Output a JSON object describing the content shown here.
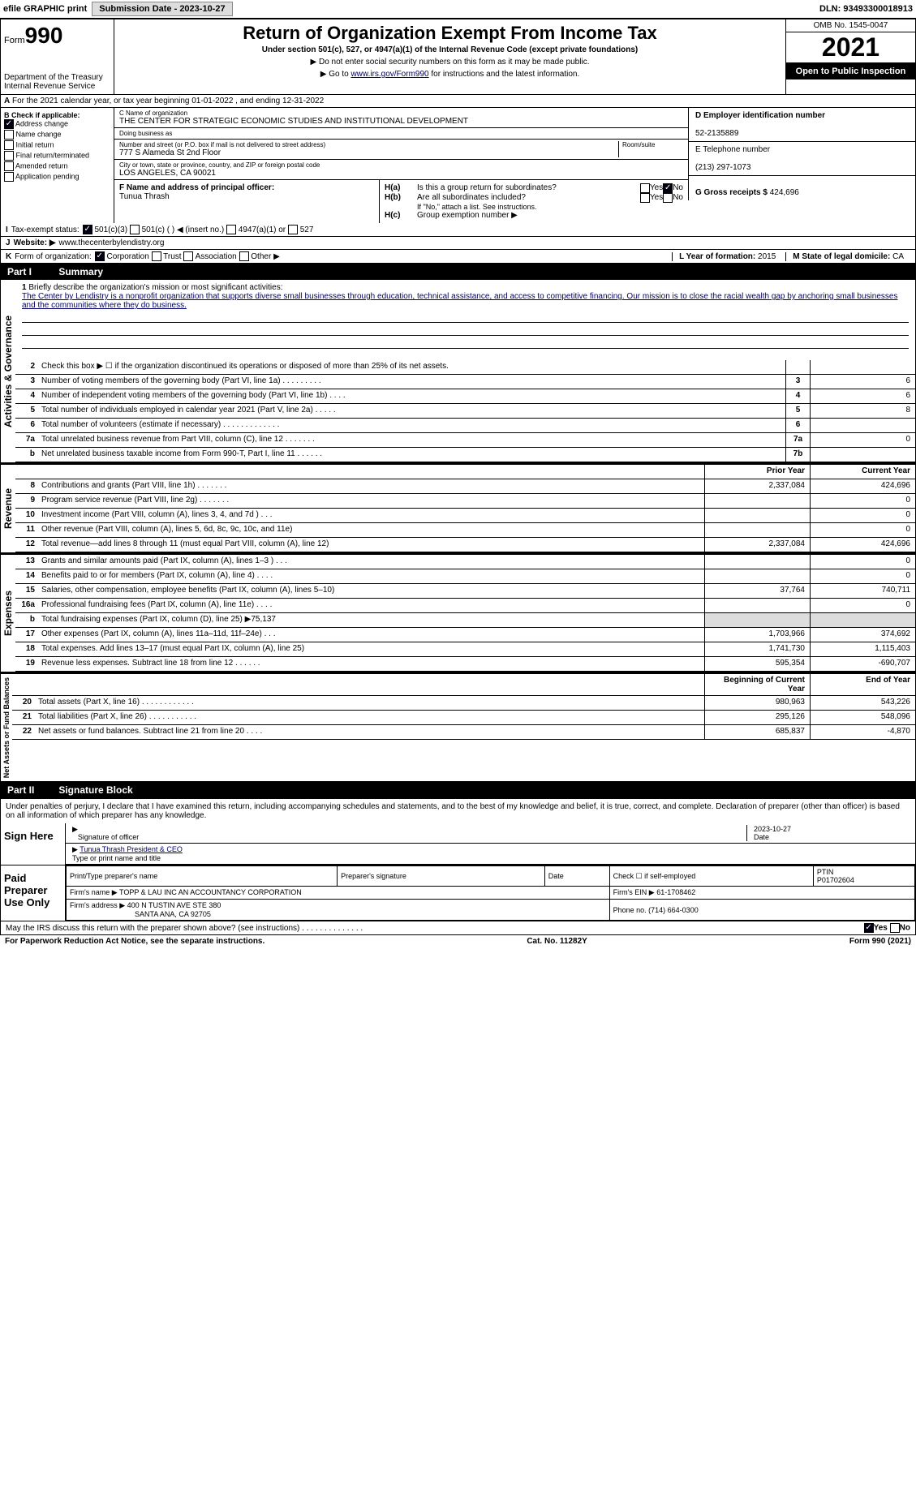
{
  "top_bar": {
    "efile": "efile GRAPHIC print",
    "submission": "Submission Date - 2023-10-27",
    "dln": "DLN: 93493300018913"
  },
  "header": {
    "form_label": "Form",
    "form_num": "990",
    "title": "Return of Organization Exempt From Income Tax",
    "subtitle": "Under section 501(c), 527, or 4947(a)(1) of the Internal Revenue Code (except private foundations)",
    "note1": "▶ Do not enter social security numbers on this form as it may be made public.",
    "note2_pre": "▶ Go to ",
    "note2_link": "www.irs.gov/Form990",
    "note2_post": " for instructions and the latest information.",
    "dept": "Department of the Treasury",
    "irs": "Internal Revenue Service",
    "omb": "OMB No. 1545-0047",
    "year": "2021",
    "open": "Open to Public Inspection"
  },
  "row_a": {
    "text": "For the 2021 calendar year, or tax year beginning 01-01-2022   , and ending 12-31-2022",
    "marker": "A"
  },
  "col_b": {
    "hdr": "B Check if applicable:",
    "items": [
      "Address change",
      "Name change",
      "Initial return",
      "Final return/terminated",
      "Amended return",
      "Application pending"
    ],
    "checked": [
      true,
      false,
      false,
      false,
      false,
      false
    ]
  },
  "org": {
    "name_lbl": "C Name of organization",
    "name": "THE CENTER FOR STRATEGIC ECONOMIC STUDIES AND INSTITUTIONAL DEVELOPMENT",
    "dba_lbl": "Doing business as",
    "dba": "",
    "addr_lbl": "Number and street (or P.O. box if mail is not delivered to street address)",
    "room_lbl": "Room/suite",
    "addr": "777 S Alameda St 2nd Floor",
    "city_lbl": "City or town, state or province, country, and ZIP or foreign postal code",
    "city": "LOS ANGELES, CA  90021",
    "officer_lbl": "F Name and address of principal officer:",
    "officer": "Tunua Thrash"
  },
  "right": {
    "ein_lbl": "D Employer identification number",
    "ein": "52-2135889",
    "tel_lbl": "E Telephone number",
    "tel": "(213) 297-1073",
    "gross_lbl": "G Gross receipts $",
    "gross": "424,696"
  },
  "h_section": {
    "ha": "Is this a group return for subordinates?",
    "hb": "Are all subordinates included?",
    "hb_note": "If \"No,\" attach a list. See instructions.",
    "hc": "Group exemption number ▶",
    "ha_lbl": "H(a)",
    "hb_lbl": "H(b)",
    "hc_lbl": "H(c)",
    "yes": "Yes",
    "no": "No"
  },
  "tax_status": {
    "lbl": "Tax-exempt status:",
    "i": "I",
    "opts": [
      "501(c)(3)",
      "501(c) (  ) ◀ (insert no.)",
      "4947(a)(1) or",
      "527"
    ],
    "checked": 0
  },
  "website": {
    "lbl": "Website: ▶",
    "j": "J",
    "val": "www.thecenterbylendistry.org"
  },
  "k_line": {
    "lbl": "Form of organization:",
    "k": "K",
    "opts": [
      "Corporation",
      "Trust",
      "Association",
      "Other ▶"
    ],
    "checked": 0,
    "l_lbl": "L Year of formation:",
    "l_val": "2015",
    "m_lbl": "M State of legal domicile:",
    "m_val": "CA"
  },
  "parts": {
    "p1": "Part I",
    "p1_t": "Summary",
    "p2": "Part II",
    "p2_t": "Signature Block"
  },
  "sections": {
    "activities": "Activities & Governance",
    "revenue": "Revenue",
    "expenses": "Expenses",
    "net": "Net Assets or Fund Balances"
  },
  "mission": {
    "lbl": "Briefly describe the organization's mission or most significant activities:",
    "n": "1",
    "text": "The Center by Lendistry is a nonprofit organization that supports diverse small businesses through education, technical assistance, and access to competitive financing. Our mission is to close the racial wealth gap by anchoring small businesses and the communities where they do business."
  },
  "gov_lines": [
    {
      "n": "2",
      "txt": "Check this box ▶ ☐ if the organization discontinued its operations or disposed of more than 25% of its net assets.",
      "box": "",
      "v": ""
    },
    {
      "n": "3",
      "txt": "Number of voting members of the governing body (Part VI, line 1a)  .  .  .  .  .  .  .  .  .",
      "box": "3",
      "v": "6"
    },
    {
      "n": "4",
      "txt": "Number of independent voting members of the governing body (Part VI, line 1b)  .  .  .  .",
      "box": "4",
      "v": "6"
    },
    {
      "n": "5",
      "txt": "Total number of individuals employed in calendar year 2021 (Part V, line 2a)  .  .  .  .  .",
      "box": "5",
      "v": "8"
    },
    {
      "n": "6",
      "txt": "Total number of volunteers (estimate if necessary)  .  .  .  .  .  .  .  .  .  .  .  .  .",
      "box": "6",
      "v": ""
    },
    {
      "n": "7a",
      "txt": "Total unrelated business revenue from Part VIII, column (C), line 12  .  .  .  .  .  .  .",
      "box": "7a",
      "v": "0"
    },
    {
      "n": "b",
      "txt": "Net unrelated business taxable income from Form 990-T, Part I, line 11  .  .  .  .  .  .",
      "box": "7b",
      "v": ""
    }
  ],
  "col_headers": {
    "prior": "Prior Year",
    "current": "Current Year",
    "begin": "Beginning of Current Year",
    "end": "End of Year"
  },
  "revenue_lines": [
    {
      "n": "8",
      "txt": "Contributions and grants (Part VIII, line 1h)  .  .  .  .  .  .  .",
      "p": "2,337,084",
      "c": "424,696"
    },
    {
      "n": "9",
      "txt": "Program service revenue (Part VIII, line 2g)  .  .  .  .  .  .  .",
      "p": "",
      "c": "0"
    },
    {
      "n": "10",
      "txt": "Investment income (Part VIII, column (A), lines 3, 4, and 7d )  .  .  .",
      "p": "",
      "c": "0"
    },
    {
      "n": "11",
      "txt": "Other revenue (Part VIII, column (A), lines 5, 6d, 8c, 9c, 10c, and 11e)",
      "p": "",
      "c": "0"
    },
    {
      "n": "12",
      "txt": "Total revenue—add lines 8 through 11 (must equal Part VIII, column (A), line 12)",
      "p": "2,337,084",
      "c": "424,696"
    }
  ],
  "expense_lines": [
    {
      "n": "13",
      "txt": "Grants and similar amounts paid (Part IX, column (A), lines 1–3 )  .  .  .",
      "p": "",
      "c": "0"
    },
    {
      "n": "14",
      "txt": "Benefits paid to or for members (Part IX, column (A), line 4)  .  .  .  .",
      "p": "",
      "c": "0"
    },
    {
      "n": "15",
      "txt": "Salaries, other compensation, employee benefits (Part IX, column (A), lines 5–10)",
      "p": "37,764",
      "c": "740,711"
    },
    {
      "n": "16a",
      "txt": "Professional fundraising fees (Part IX, column (A), line 11e)  .  .  .  .",
      "p": "",
      "c": "0"
    },
    {
      "n": "b",
      "txt": "Total fundraising expenses (Part IX, column (D), line 25) ▶75,137",
      "p": "shaded",
      "c": "shaded"
    },
    {
      "n": "17",
      "txt": "Other expenses (Part IX, column (A), lines 11a–11d, 11f–24e)  .  .  .",
      "p": "1,703,966",
      "c": "374,692"
    },
    {
      "n": "18",
      "txt": "Total expenses. Add lines 13–17 (must equal Part IX, column (A), line 25)",
      "p": "1,741,730",
      "c": "1,115,403"
    },
    {
      "n": "19",
      "txt": "Revenue less expenses. Subtract line 18 from line 12  .  .  .  .  .  .",
      "p": "595,354",
      "c": "-690,707"
    }
  ],
  "net_lines": [
    {
      "n": "20",
      "txt": "Total assets (Part X, line 16)  .  .  .  .  .  .  .  .  .  .  .  .",
      "p": "980,963",
      "c": "543,226"
    },
    {
      "n": "21",
      "txt": "Total liabilities (Part X, line 26)  .  .  .  .  .  .  .  .  .  .  .",
      "p": "295,126",
      "c": "548,096"
    },
    {
      "n": "22",
      "txt": "Net assets or fund balances. Subtract line 21 from line 20  .  .  .  .",
      "p": "685,837",
      "c": "-4,870"
    }
  ],
  "sig": {
    "decl": "Under penalties of perjury, I declare that I have examined this return, including accompanying schedules and statements, and to the best of my knowledge and belief, it is true, correct, and complete. Declaration of preparer (other than officer) is based on all information of which preparer has any knowledge.",
    "sign_here": "Sign Here",
    "sig_officer": "Signature of officer",
    "date": "Date",
    "date_val": "2023-10-27",
    "name": "Tunua Thrash  President & CEO",
    "name_lbl": "Type or print name and title",
    "paid": "Paid Preparer Use Only",
    "prep_name": "Print/Type preparer's name",
    "prep_sig": "Preparer's signature",
    "prep_date": "Date",
    "check_self": "Check ☐ if self-employed",
    "ptin_lbl": "PTIN",
    "ptin": "P01702604",
    "firm_name_lbl": "Firm's name  ▶",
    "firm_name": "TOPP & LAU INC AN ACCOUNTANCY CORPORATION",
    "firm_ein_lbl": "Firm's EIN ▶",
    "firm_ein": "61-1708462",
    "firm_addr_lbl": "Firm's address ▶",
    "firm_addr": "400 N TUSTIN AVE STE 380",
    "firm_city": "SANTA ANA, CA  92705",
    "phone_lbl": "Phone no.",
    "phone": "(714) 664-0300",
    "discuss": "May the IRS discuss this return with the preparer shown above? (see instructions)  .  .  .  .  .  .  .  .  .  .  .  .  .  .",
    "yes": "Yes",
    "no": "No"
  },
  "footer": {
    "left": "For Paperwork Reduction Act Notice, see the separate instructions.",
    "mid": "Cat. No. 11282Y",
    "right": "Form 990 (2021)"
  },
  "colors": {
    "hdr_bg": "#000000",
    "hdr_fg": "#ffffff",
    "link": "#000066",
    "shaded": "#dddddd"
  }
}
